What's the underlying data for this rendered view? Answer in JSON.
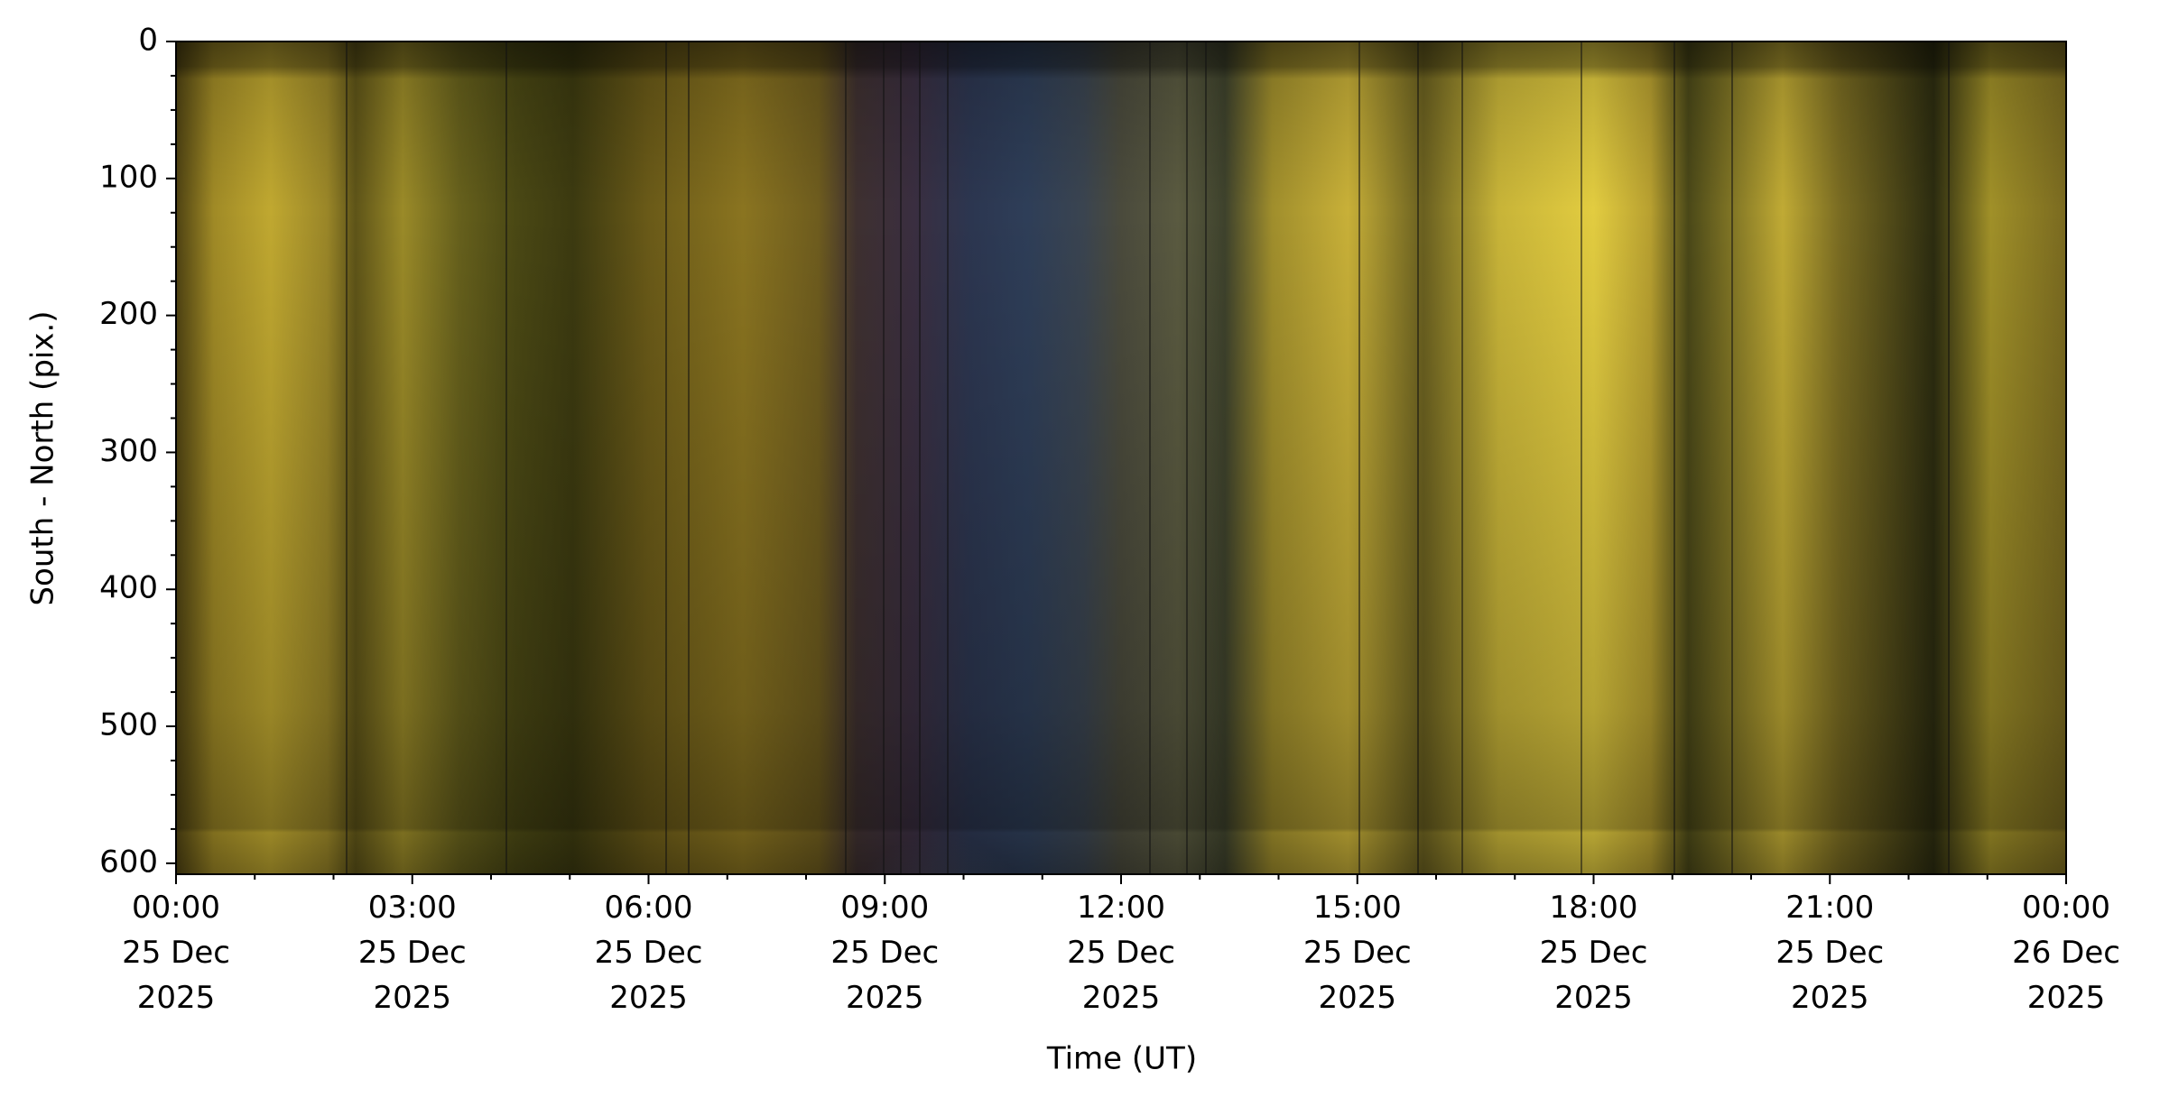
{
  "chart_data": {
    "type": "keogram",
    "xlabel": "Time (UT)",
    "ylabel": "South - North (pix.)",
    "xlim": [
      "2025-12-25T00:00",
      "2025-12-26T00:00"
    ],
    "xticks": [
      {
        "value": "2025-12-25T00:00",
        "label": [
          "00:00",
          "25 Dec",
          "2025"
        ]
      },
      {
        "value": "2025-12-25T03:00",
        "label": [
          "03:00",
          "25 Dec",
          "2025"
        ]
      },
      {
        "value": "2025-12-25T06:00",
        "label": [
          "06:00",
          "25 Dec",
          "2025"
        ]
      },
      {
        "value": "2025-12-25T09:00",
        "label": [
          "09:00",
          "25 Dec",
          "2025"
        ]
      },
      {
        "value": "2025-12-25T12:00",
        "label": [
          "12:00",
          "25 Dec",
          "2025"
        ]
      },
      {
        "value": "2025-12-25T15:00",
        "label": [
          "15:00",
          "25 Dec",
          "2025"
        ]
      },
      {
        "value": "2025-12-25T18:00",
        "label": [
          "18:00",
          "25 Dec",
          "2025"
        ]
      },
      {
        "value": "2025-12-25T21:00",
        "label": [
          "21:00",
          "25 Dec",
          "2025"
        ]
      },
      {
        "value": "2025-12-26T00:00",
        "label": [
          "00:00",
          "26 Dec",
          "2025"
        ]
      }
    ],
    "ylim": [
      0,
      608
    ],
    "y_inverted": true,
    "yticks": [
      0,
      100,
      200,
      300,
      400,
      500,
      600
    ]
  }
}
